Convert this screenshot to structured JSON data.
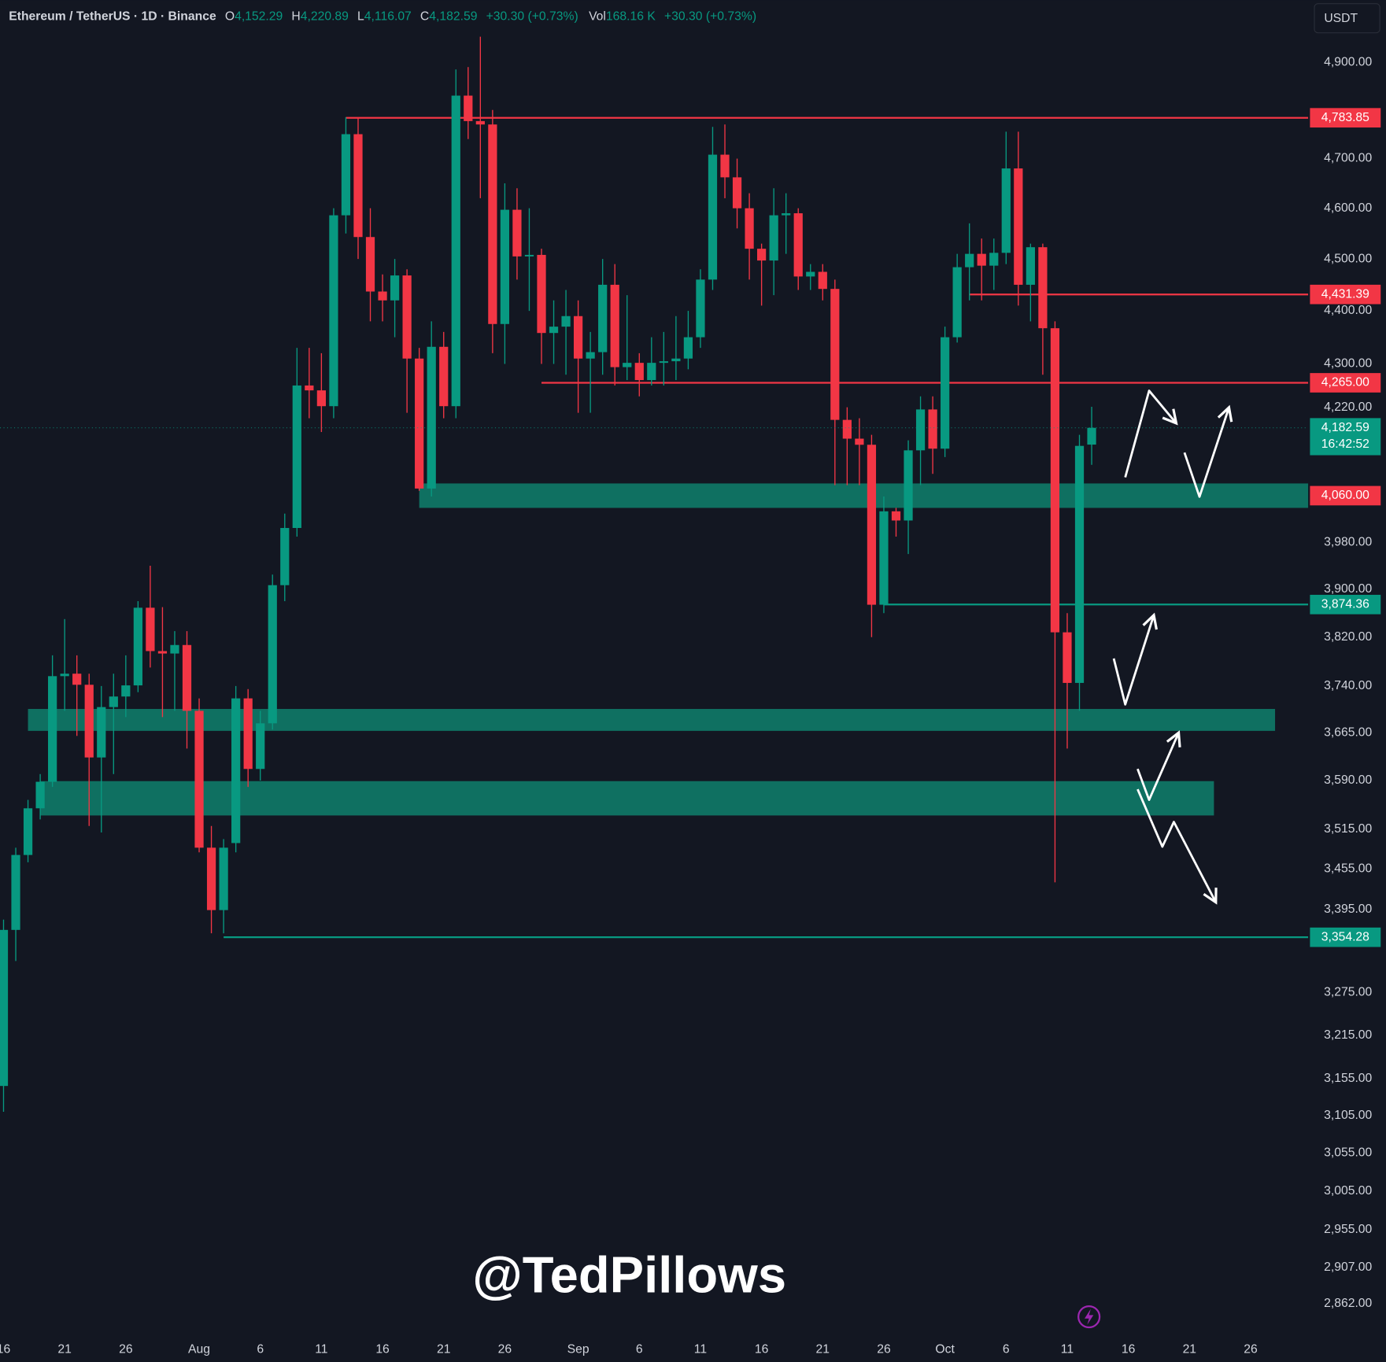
{
  "header": {
    "symbol": "Ethereum / TetherUS · 1D · Binance",
    "o_key": "O",
    "o": "4,152.29",
    "h_key": "H",
    "h": "4,220.89",
    "l_key": "L",
    "l": "4,116.07",
    "c_key": "C",
    "c": "4,182.59",
    "change": "+30.30 (+0.73%)",
    "vol_key": "Vol",
    "vol": "168.16 K",
    "vol_change": "+30.30 (+0.73%)",
    "currency": "USDT",
    "watermark": "@TedPillows"
  },
  "chart_data": {
    "type": "candlestick",
    "log_scale": true,
    "grid": false,
    "up_color": "#089981",
    "down_color": "#f23645",
    "x": [
      "Jul 16",
      "Jul 17",
      "Jul 18",
      "Jul 19",
      "Jul 20",
      "Jul 21",
      "Jul 22",
      "Jul 23",
      "Jul 24",
      "Jul 25",
      "Jul 26",
      "Jul 27",
      "Jul 28",
      "Jul 29",
      "Jul 30",
      "Jul 31",
      "Aug 1",
      "Aug 2",
      "Aug 3",
      "Aug 4",
      "Aug 5",
      "Aug 6",
      "Aug 7",
      "Aug 8",
      "Aug 9",
      "Aug 10",
      "Aug 11",
      "Aug 12",
      "Aug 13",
      "Aug 14",
      "Aug 15",
      "Aug 16",
      "Aug 17",
      "Aug 18",
      "Aug 19",
      "Aug 20",
      "Aug 21",
      "Aug 22",
      "Aug 23",
      "Aug 24",
      "Aug 25",
      "Aug 26",
      "Aug 27",
      "Aug 28",
      "Aug 29",
      "Aug 30",
      "Aug 31",
      "Sep 1",
      "Sep 2",
      "Sep 3",
      "Sep 4",
      "Sep 5",
      "Sep 6",
      "Sep 7",
      "Sep 8",
      "Sep 9",
      "Sep 10",
      "Sep 11",
      "Sep 12",
      "Sep 13",
      "Sep 14",
      "Sep 15",
      "Sep 16",
      "Sep 17",
      "Sep 18",
      "Sep 19",
      "Sep 20",
      "Sep 21",
      "Sep 22",
      "Sep 23",
      "Sep 24",
      "Sep 25",
      "Sep 26",
      "Sep 27",
      "Sep 28",
      "Sep 29",
      "Sep 30",
      "Oct 1",
      "Oct 2",
      "Oct 3",
      "Oct 4",
      "Oct 5",
      "Oct 6",
      "Oct 7",
      "Oct 8",
      "Oct 9",
      "Oct 10",
      "Oct 11",
      "Oct 12",
      "Oct 13"
    ],
    "open": [
      3145,
      3365,
      3476,
      3547,
      3588,
      3756,
      3760,
      3742,
      3626,
      3706,
      3723,
      3741,
      3869,
      3797,
      3793,
      3807,
      3700,
      3487,
      3394,
      3494,
      3720,
      3608,
      3680,
      3907,
      4005,
      4260,
      4251,
      4222,
      4586,
      4750,
      4543,
      4437,
      4420,
      4468,
      4310,
      4074,
      4332,
      4222,
      4830,
      4777,
      4770,
      4375,
      4597,
      4505,
      4508,
      4358,
      4370,
      4390,
      4310,
      4322,
      4450,
      4294,
      4302,
      4270,
      4302,
      4305,
      4310,
      4350,
      4460,
      4708,
      4662,
      4600,
      4520,
      4497,
      4586,
      4590,
      4466,
      4475,
      4442,
      4197,
      4163,
      4152,
      3874,
      4034,
      4018,
      4142,
      4216,
      4145,
      4350,
      4484,
      4510,
      4487,
      4512,
      4680,
      4450,
      4523,
      4367,
      3828,
      3745,
      4152.29
    ],
    "high": [
      3380,
      3487,
      3560,
      3600,
      3790,
      3850,
      3790,
      3760,
      3740,
      3760,
      3790,
      3880,
      3940,
      3870,
      3830,
      3830,
      3720,
      3520,
      3500,
      3740,
      3735,
      3700,
      3925,
      4030,
      4330,
      4330,
      4320,
      4600,
      4785,
      4785,
      4600,
      4470,
      4500,
      4480,
      4330,
      4380,
      4360,
      4885,
      4890,
      4955,
      4800,
      4650,
      4640,
      4600,
      4520,
      4420,
      4440,
      4420,
      4360,
      4500,
      4490,
      4430,
      4320,
      4350,
      4360,
      4390,
      4400,
      4480,
      4765,
      4770,
      4700,
      4630,
      4530,
      4640,
      4630,
      4600,
      4490,
      4490,
      4460,
      4220,
      4200,
      4170,
      4060,
      4040,
      4160,
      4240,
      4240,
      4370,
      4510,
      4570,
      4540,
      4540,
      4755,
      4755,
      4530,
      4530,
      4380,
      3860,
      4170,
      4220.89
    ],
    "low": [
      3110,
      3320,
      3465,
      3530,
      3580,
      3700,
      3660,
      3520,
      3510,
      3600,
      3690,
      3730,
      3770,
      3690,
      3700,
      3640,
      3480,
      3360,
      3360,
      3480,
      3580,
      3590,
      3670,
      3880,
      3990,
      4200,
      4175,
      4200,
      4550,
      4500,
      4380,
      4380,
      4350,
      4210,
      4070,
      4060,
      4200,
      4200,
      4740,
      4620,
      4320,
      4300,
      4460,
      4400,
      4300,
      4300,
      4280,
      4210,
      4210,
      4280,
      4260,
      4270,
      4240,
      4260,
      4260,
      4270,
      4290,
      4330,
      4440,
      4620,
      4560,
      4460,
      4410,
      4430,
      4510,
      4440,
      4440,
      4420,
      4080,
      4080,
      4080,
      3820,
      3860,
      3990,
      3960,
      4080,
      4100,
      4130,
      4340,
      4420,
      4420,
      4440,
      4490,
      4410,
      4380,
      4280,
      3435,
      3640,
      3700,
      4116.07
    ],
    "close": [
      3365,
      3476,
      3547,
      3588,
      3756,
      3760,
      3742,
      3626,
      3706,
      3723,
      3741,
      3869,
      3797,
      3793,
      3807,
      3700,
      3487,
      3394,
      3487,
      3720,
      3608,
      3680,
      3907,
      4005,
      4260,
      4251,
      4222,
      4586,
      4750,
      4543,
      4437,
      4420,
      4468,
      4310,
      4074,
      4332,
      4222,
      4830,
      4777,
      4770,
      4375,
      4597,
      4505,
      4508,
      4358,
      4370,
      4390,
      4310,
      4322,
      4450,
      4294,
      4302,
      4270,
      4302,
      4305,
      4310,
      4350,
      4460,
      4708,
      4662,
      4600,
      4520,
      4497,
      4586,
      4590,
      4466,
      4475,
      4442,
      4197,
      4163,
      4152,
      3874,
      4034,
      4018,
      4142,
      4216,
      4145,
      4350,
      4484,
      4510,
      4487,
      4512,
      4680,
      4450,
      4523,
      4367,
      3828,
      3745,
      4150,
      4182.59
    ],
    "xlim": [
      "Jul 16",
      "Oct 31"
    ],
    "xticks": [
      {
        "value": "Jul 16",
        "label": "16"
      },
      {
        "value": "Jul 21",
        "label": "21"
      },
      {
        "value": "Jul 26",
        "label": "26"
      },
      {
        "value": "Aug 1",
        "label": "Aug"
      },
      {
        "value": "Aug 6",
        "label": "6"
      },
      {
        "value": "Aug 11",
        "label": "11"
      },
      {
        "value": "Aug 16",
        "label": "16"
      },
      {
        "value": "Aug 21",
        "label": "21"
      },
      {
        "value": "Aug 26",
        "label": "26"
      },
      {
        "value": "Sep 1",
        "label": "Sep"
      },
      {
        "value": "Sep 6",
        "label": "6"
      },
      {
        "value": "Sep 11",
        "label": "11"
      },
      {
        "value": "Sep 16",
        "label": "16"
      },
      {
        "value": "Sep 21",
        "label": "21"
      },
      {
        "value": "Sep 26",
        "label": "26"
      },
      {
        "value": "Oct 1",
        "label": "Oct"
      },
      {
        "value": "Oct 6",
        "label": "6"
      },
      {
        "value": "Oct 11",
        "label": "11"
      },
      {
        "value": "Oct 16",
        "label": "16"
      },
      {
        "value": "Oct 21",
        "label": "21"
      },
      {
        "value": "Oct 26",
        "label": "26"
      }
    ],
    "ylim": [
      2824,
      5034
    ],
    "yticks": [
      {
        "value": 4900,
        "label": "4,900.00"
      },
      {
        "value": 4700,
        "label": "4,700.00"
      },
      {
        "value": 4600,
        "label": "4,600.00"
      },
      {
        "value": 4500,
        "label": "4,500.00"
      },
      {
        "value": 4400,
        "label": "4,400.00"
      },
      {
        "value": 4300,
        "label": "4,300.00"
      },
      {
        "value": 4220,
        "label": "4,220.00"
      },
      {
        "value": 3980,
        "label": "3,980.00"
      },
      {
        "value": 3900,
        "label": "3,900.00"
      },
      {
        "value": 3820,
        "label": "3,820.00"
      },
      {
        "value": 3740,
        "label": "3,740.00"
      },
      {
        "value": 3665,
        "label": "3,665.00"
      },
      {
        "value": 3590,
        "label": "3,590.00"
      },
      {
        "value": 3515,
        "label": "3,515.00"
      },
      {
        "value": 3455,
        "label": "3,455.00"
      },
      {
        "value": 3395,
        "label": "3,395.00"
      },
      {
        "value": 3275,
        "label": "3,275.00"
      },
      {
        "value": 3215,
        "label": "3,215.00"
      },
      {
        "value": 3155,
        "label": "3,155.00"
      },
      {
        "value": 3105,
        "label": "3,105.00"
      },
      {
        "value": 3055,
        "label": "3,055.00"
      },
      {
        "value": 3005,
        "label": "3,005.00"
      },
      {
        "value": 2955,
        "label": "2,955.00"
      },
      {
        "value": 2907,
        "label": "2,907.00"
      },
      {
        "value": 2862,
        "label": "2,862.00"
      }
    ],
    "levels": [
      {
        "value": 4783.85,
        "label": "4,783.85",
        "color": "#f23645",
        "start": "Aug 13"
      },
      {
        "value": 4431.39,
        "label": "4,431.39",
        "color": "#f23645",
        "start": "Oct 3"
      },
      {
        "value": 4265,
        "label": "4,265.00",
        "color": "#f23645",
        "start": "Aug 29"
      },
      {
        "value": 3874.36,
        "label": "3,874.36",
        "color": "#089981",
        "start": "Sep 26"
      },
      {
        "value": 3354.28,
        "label": "3,354.28",
        "color": "#089981",
        "start": "Aug 3"
      }
    ],
    "zones": [
      {
        "from": 4040,
        "to": 4083,
        "label": "4,060.00",
        "color": "#0f7a68",
        "start": "Aug 19",
        "end": "Oct 31"
      },
      {
        "from": 3668,
        "to": 3703,
        "color": "#0f7a68",
        "start": "Jul 18",
        "end": "Oct 28"
      },
      {
        "from": 3536,
        "to": 3589,
        "color": "#0f7a68",
        "start": "Jul 19",
        "end": "Oct 23"
      }
    ],
    "last_price": {
      "value": 4182.59,
      "label": "4,182.59",
      "countdown": "16:42:52",
      "color": "#089981"
    }
  }
}
